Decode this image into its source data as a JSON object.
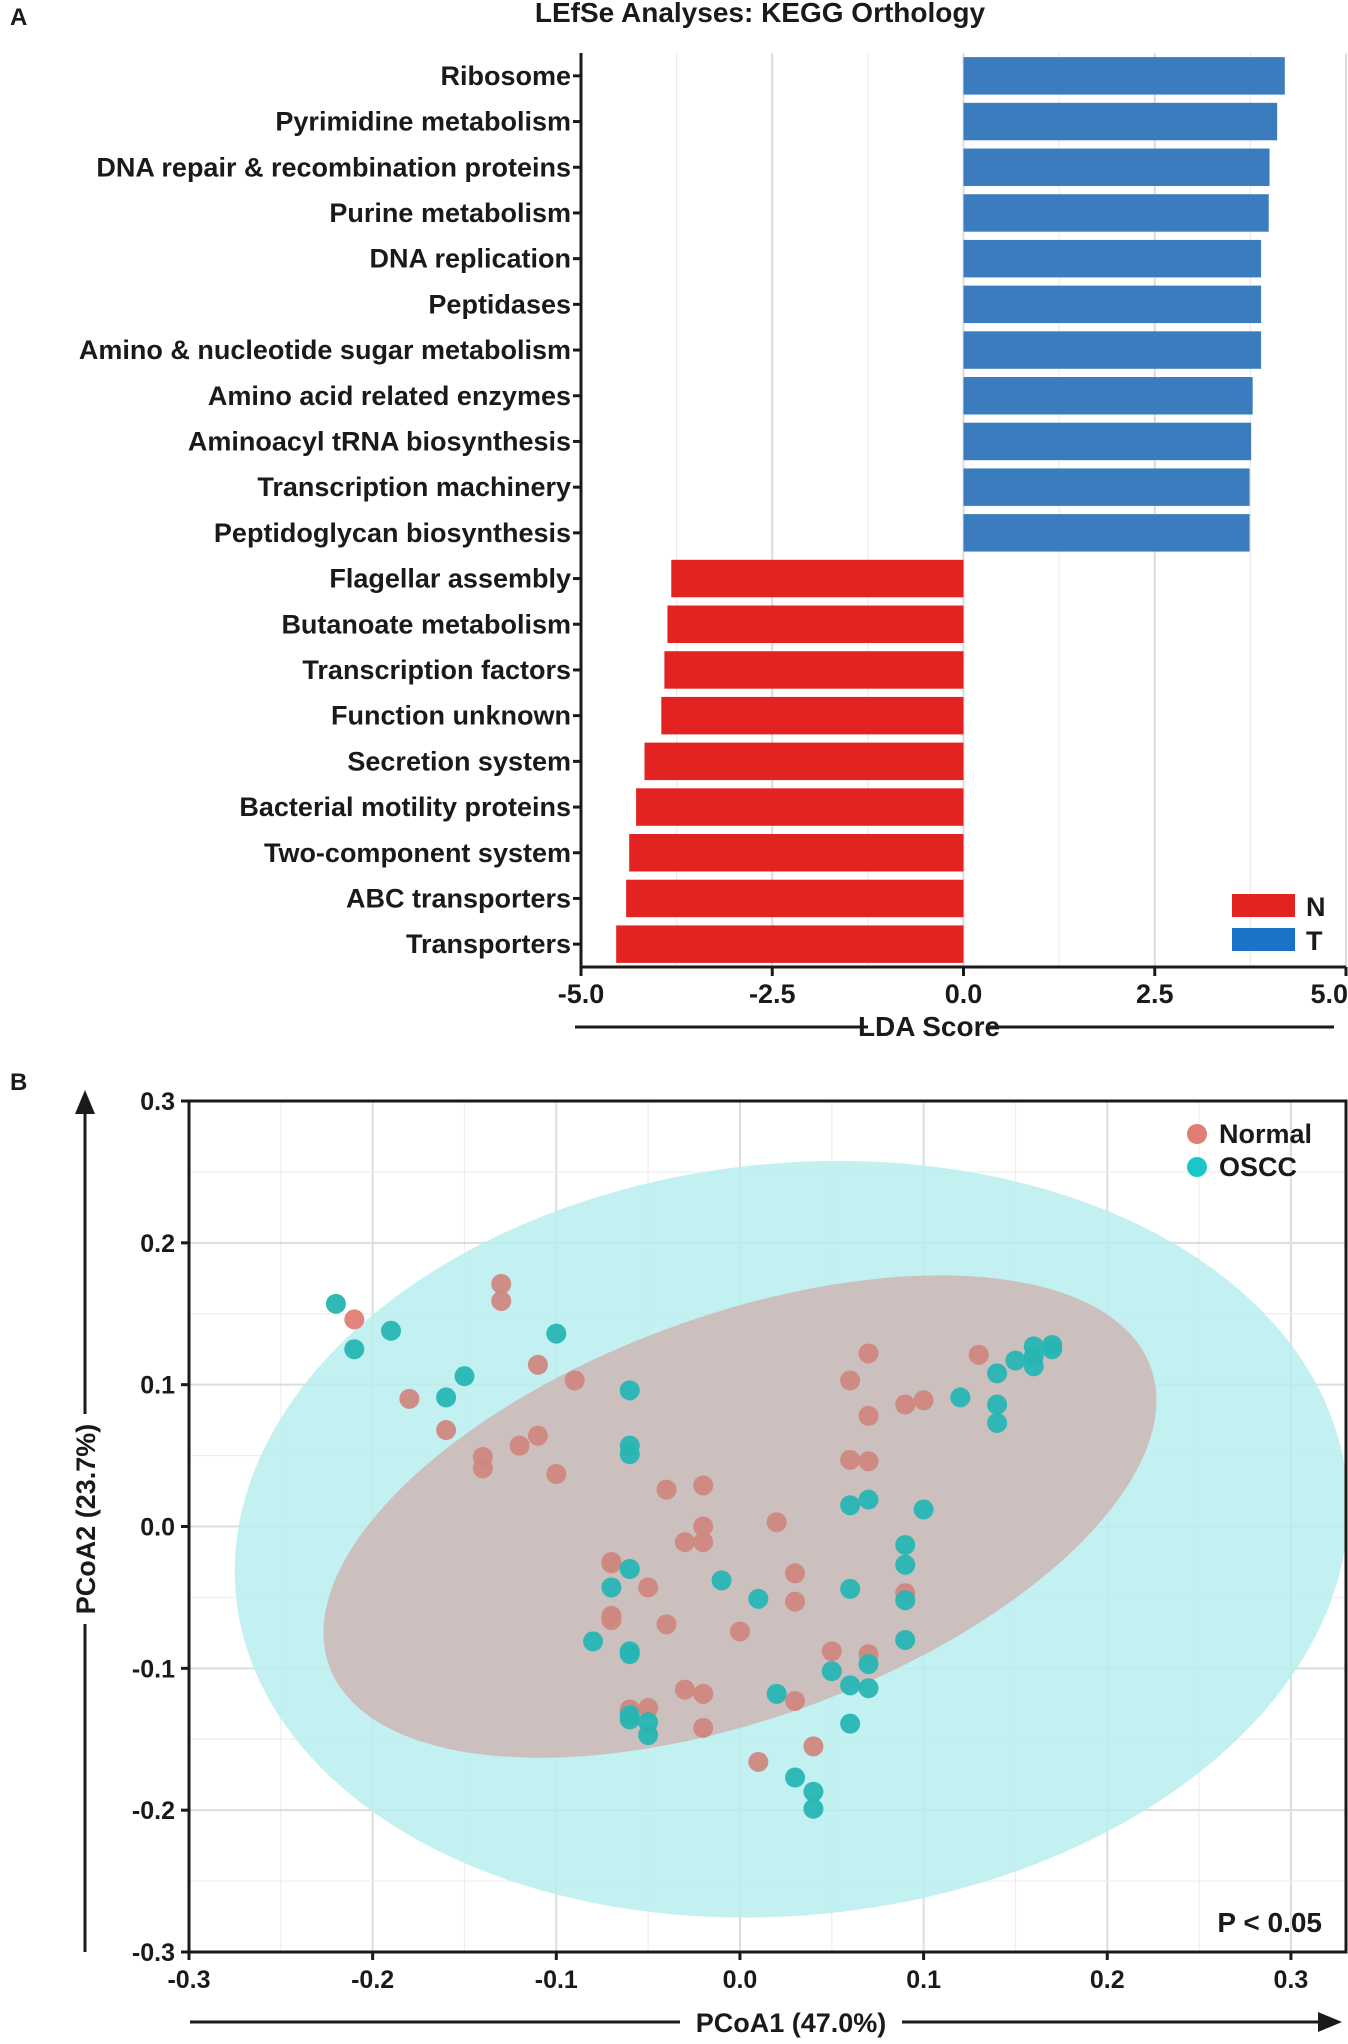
{
  "panel_labels": {
    "a": "A",
    "b": "B"
  },
  "chart_data": [
    {
      "type": "bar",
      "orientation": "horizontal",
      "title": "LEfSe Analyses: KEGG Orthology",
      "xlabel": "LDA Score",
      "xlim": [
        -5.0,
        5.0
      ],
      "xticks": [
        -5.0,
        -2.5,
        0.0,
        2.5,
        5.0
      ],
      "xtick_labels": [
        "-5.0",
        "-2.5",
        "0.0",
        "2.5",
        "5.0"
      ],
      "grid": true,
      "legend_position": "bottom-right",
      "legend": [
        {
          "label": "N",
          "color": "#e32222"
        },
        {
          "label": "T",
          "color": "#1a73c6"
        }
      ],
      "categories": [
        "Ribosome",
        "Pyrimidine metabolism",
        "DNA repair & recombination proteins",
        "Purine metabolism",
        "DNA replication",
        "Peptidases",
        "Amino & nucleotide sugar metabolism",
        "Amino acid related enzymes",
        "Aminoacyl tRNA biosynthesis",
        "Transcription machinery",
        "Peptidoglycan biosynthesis",
        "Flagellar assembly",
        "Butanoate metabolism",
        "Transcription factors",
        "Function unknown",
        "Secretion system",
        "Bacterial motility proteins",
        "Two-component system",
        "ABC transporters",
        "Transporters"
      ],
      "values": [
        4.2,
        4.1,
        4.0,
        3.99,
        3.89,
        3.89,
        3.89,
        3.78,
        3.76,
        3.74,
        3.74,
        -3.82,
        -3.87,
        -3.91,
        -3.95,
        -4.17,
        -4.28,
        -4.37,
        -4.41,
        -4.54
      ],
      "groups": [
        "T",
        "T",
        "T",
        "T",
        "T",
        "T",
        "T",
        "T",
        "T",
        "T",
        "T",
        "N",
        "N",
        "N",
        "N",
        "N",
        "N",
        "N",
        "N",
        "N"
      ],
      "bar_colors": {
        "T": "#3a7cbd",
        "N": "#e32222"
      }
    },
    {
      "type": "scatter",
      "xlabel": "PCoA1 (47.0%)",
      "ylabel": "PCoA2 (23.7%)",
      "xlim": [
        -0.3,
        0.33
      ],
      "ylim": [
        -0.3,
        0.3
      ],
      "xticks": [
        -0.3,
        -0.2,
        -0.1,
        0.0,
        0.1,
        0.2,
        0.3
      ],
      "xtick_labels": [
        "-0.3",
        "-0.2",
        "-0.1",
        "0.0",
        "0.1",
        "0.2",
        "0.3"
      ],
      "yticks": [
        -0.3,
        -0.2,
        -0.1,
        0.0,
        0.1,
        0.2,
        0.3
      ],
      "ytick_labels": [
        "-0.3",
        "-0.2",
        "-0.1",
        "0.0",
        "0.1",
        "0.2",
        "0.3"
      ],
      "grid": true,
      "legend_position": "top-right",
      "annotation": "P < 0.05",
      "series": [
        {
          "name": "Normal",
          "color": "#e07d74",
          "point_color": "#cf8880",
          "ellipse_color": "#f6c9c6",
          "ellipse": {
            "cx": 0.0,
            "cy": 0.007,
            "rx": 0.238,
            "ry": 0.142,
            "angle": -20
          },
          "points": [
            [
              -0.21,
              0.146
            ],
            [
              -0.18,
              0.09
            ],
            [
              -0.16,
              0.068
            ],
            [
              -0.13,
              0.171
            ],
            [
              -0.13,
              0.159
            ],
            [
              -0.14,
              0.049
            ],
            [
              -0.14,
              0.041
            ],
            [
              -0.12,
              0.057
            ],
            [
              -0.11,
              0.114
            ],
            [
              -0.11,
              0.064
            ],
            [
              -0.1,
              0.037
            ],
            [
              -0.09,
              0.103
            ],
            [
              -0.04,
              0.026
            ],
            [
              -0.02,
              0.029
            ],
            [
              -0.02,
              0.0
            ],
            [
              -0.03,
              -0.011
            ],
            [
              -0.02,
              -0.011
            ],
            [
              -0.07,
              -0.025
            ],
            [
              -0.07,
              -0.026
            ],
            [
              -0.07,
              -0.063
            ],
            [
              -0.07,
              -0.066
            ],
            [
              -0.05,
              -0.043
            ],
            [
              -0.04,
              -0.069
            ],
            [
              -0.0,
              -0.074
            ],
            [
              0.02,
              0.003
            ],
            [
              0.03,
              -0.033
            ],
            [
              0.03,
              -0.053
            ],
            [
              0.06,
              0.103
            ],
            [
              0.07,
              0.122
            ],
            [
              0.06,
              0.047
            ],
            [
              0.07,
              0.046
            ],
            [
              0.07,
              0.078
            ],
            [
              0.09,
              0.086
            ],
            [
              0.1,
              0.089
            ],
            [
              0.13,
              0.121
            ],
            [
              0.09,
              -0.047
            ],
            [
              0.05,
              -0.088
            ],
            [
              0.07,
              -0.09
            ],
            [
              -0.06,
              -0.129
            ],
            [
              -0.05,
              -0.128
            ],
            [
              -0.03,
              -0.115
            ],
            [
              -0.02,
              -0.118
            ],
            [
              -0.02,
              -0.142
            ],
            [
              0.01,
              -0.166
            ],
            [
              0.03,
              -0.123
            ],
            [
              0.04,
              -0.155
            ]
          ]
        },
        {
          "name": "OSCC",
          "color": "#18c8c8",
          "point_color": "#27b5b3",
          "ellipse_color": "#b9eff0",
          "ellipse": {
            "cx": 0.028,
            "cy": -0.009,
            "rx": 0.304,
            "ry": 0.265,
            "angle": -6
          },
          "points": [
            [
              -0.22,
              0.157
            ],
            [
              -0.21,
              0.125
            ],
            [
              -0.19,
              0.138
            ],
            [
              -0.16,
              0.091
            ],
            [
              -0.15,
              0.106
            ],
            [
              -0.1,
              0.136
            ],
            [
              -0.06,
              0.096
            ],
            [
              -0.06,
              0.051
            ],
            [
              -0.06,
              0.057
            ],
            [
              -0.06,
              -0.03
            ],
            [
              -0.07,
              -0.043
            ],
            [
              -0.08,
              -0.081
            ],
            [
              -0.06,
              -0.088
            ],
            [
              -0.06,
              -0.09
            ],
            [
              -0.06,
              -0.133
            ],
            [
              -0.06,
              -0.136
            ],
            [
              -0.05,
              -0.138
            ],
            [
              -0.05,
              -0.147
            ],
            [
              -0.01,
              -0.038
            ],
            [
              0.01,
              -0.051
            ],
            [
              0.06,
              0.015
            ],
            [
              0.07,
              0.019
            ],
            [
              0.1,
              0.012
            ],
            [
              0.09,
              -0.013
            ],
            [
              0.09,
              -0.027
            ],
            [
              0.09,
              -0.052
            ],
            [
              0.06,
              -0.044
            ],
            [
              0.09,
              -0.08
            ],
            [
              0.07,
              -0.097
            ],
            [
              0.05,
              -0.102
            ],
            [
              0.06,
              -0.112
            ],
            [
              0.07,
              -0.114
            ],
            [
              0.02,
              -0.118
            ],
            [
              0.06,
              -0.139
            ],
            [
              0.03,
              -0.177
            ],
            [
              0.04,
              -0.187
            ],
            [
              0.04,
              -0.199
            ],
            [
              0.12,
              0.091
            ],
            [
              0.14,
              0.108
            ],
            [
              0.14,
              0.086
            ],
            [
              0.14,
              0.073
            ],
            [
              0.15,
              0.117
            ],
            [
              0.16,
              0.12
            ],
            [
              0.16,
              0.113
            ],
            [
              0.17,
              0.125
            ],
            [
              0.16,
              0.127
            ],
            [
              0.17,
              0.128
            ]
          ]
        }
      ]
    }
  ]
}
